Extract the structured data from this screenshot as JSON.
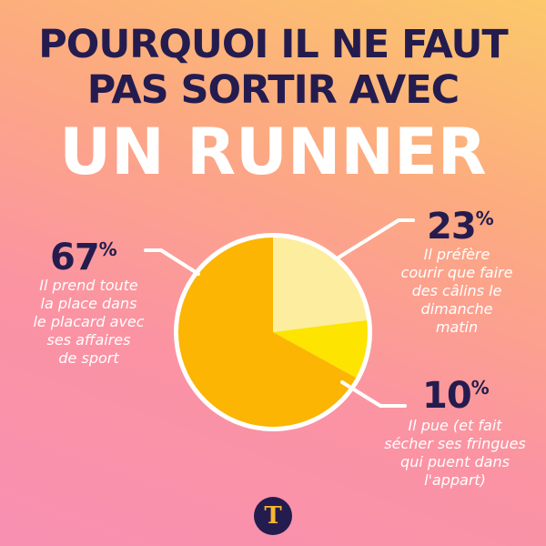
{
  "title": {
    "line1": "POURQUOI IL NE FAUT",
    "line2": "PAS SORTIR AVEC",
    "line3": "UN RUNNER"
  },
  "chart_data": {
    "type": "pie",
    "slices": [
      {
        "value": 23,
        "pct_label": "23",
        "label": "Il préfère courir que faire des câlins le dimanche matin",
        "lines": [
          "Il préfère",
          "courir que faire",
          "des câlins le",
          "dimanche",
          "matin"
        ],
        "color": "#fcee9e"
      },
      {
        "value": 10,
        "pct_label": "10",
        "label": "Il pue (et fait sécher ses fringues qui puent dans l'appart)",
        "lines": [
          "Il pue (et fait",
          "sécher ses fringues",
          "qui puent dans",
          "l'appart)"
        ],
        "color": "#fde401"
      },
      {
        "value": 67,
        "pct_label": "67",
        "label": "Il prend toute la place dans le placard avec ses affaires de sport",
        "lines": [
          "Il prend toute",
          "la place dans",
          "le placard avec",
          "ses affaires",
          "de sport"
        ],
        "color": "#fbb502"
      }
    ],
    "percent_sign": "%"
  },
  "colors": {
    "title_dark": "#241c4f",
    "slice_border": "#ffffff",
    "logo_bg": "#241c4f",
    "logo_fg": "#f7b731"
  },
  "logo": {
    "glyph": "T",
    "icon": "brand-logo-icon"
  }
}
